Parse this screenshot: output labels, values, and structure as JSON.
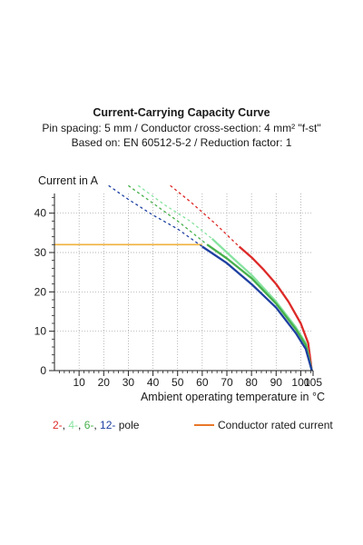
{
  "chart_data": {
    "type": "line",
    "title": "Current-Carrying Capacity Curve",
    "subtitle_lines": [
      "Pin spacing: 5 mm / Conductor cross-section: 4 mm² \"f-st\"",
      "Based on: EN 60512-5-2 / Reduction factor: 1"
    ],
    "ylabel": "Current in A",
    "xlabel": "Ambient operating temperature in °C",
    "xlim": [
      0,
      105
    ],
    "ylim": [
      0,
      45
    ],
    "x_ticks": [
      10,
      20,
      30,
      40,
      50,
      60,
      70,
      80,
      90,
      100,
      105
    ],
    "y_ticks": [
      0,
      10,
      20,
      30,
      40
    ],
    "grid": true,
    "series": [
      {
        "name": "2-",
        "color": "#dd2a28",
        "dashed": [
          [
            47,
            47
          ],
          [
            55,
            43
          ],
          [
            65,
            37.5
          ],
          [
            75,
            31.5
          ]
        ],
        "solid": [
          [
            75,
            31.5
          ],
          [
            80,
            28.8
          ],
          [
            85,
            25.6
          ],
          [
            90,
            22
          ],
          [
            95,
            17.5
          ],
          [
            100,
            12
          ],
          [
            103,
            7
          ],
          [
            104.5,
            0
          ]
        ]
      },
      {
        "name": "4-",
        "color": "#86e3a0",
        "dashed": [
          [
            34,
            47
          ],
          [
            45,
            42
          ],
          [
            55,
            38
          ],
          [
            64,
            33.5
          ]
        ],
        "solid": [
          [
            64,
            33.5
          ],
          [
            70,
            30
          ],
          [
            80,
            24.3
          ],
          [
            90,
            17.5
          ],
          [
            98,
            11
          ],
          [
            102,
            7
          ],
          [
            104.5,
            0
          ]
        ]
      },
      {
        "name": "6-",
        "color": "#47b04b",
        "dashed": [
          [
            30,
            47
          ],
          [
            40,
            42.5
          ],
          [
            50,
            38
          ],
          [
            62,
            32
          ]
        ],
        "solid": [
          [
            62,
            32
          ],
          [
            70,
            28.5
          ],
          [
            80,
            23.5
          ],
          [
            90,
            17
          ],
          [
            98,
            10.5
          ],
          [
            102,
            6.5
          ],
          [
            104.5,
            0
          ]
        ]
      },
      {
        "name": "12-",
        "color": "#1d3fa0",
        "dashed": [
          [
            22,
            47
          ],
          [
            30,
            43.5
          ],
          [
            40,
            39.5
          ],
          [
            50,
            36
          ],
          [
            60,
            31.5
          ]
        ],
        "solid": [
          [
            60,
            31.5
          ],
          [
            70,
            27.3
          ],
          [
            80,
            22
          ],
          [
            90,
            16
          ],
          [
            98,
            9.5
          ],
          [
            102,
            5.5
          ],
          [
            104.5,
            0
          ]
        ]
      }
    ],
    "rated_current": {
      "name": "Conductor rated current",
      "value": 32,
      "x_end": 60,
      "color": "#f0b23c"
    },
    "legend": {
      "poles_suffix": "pole",
      "rated_swatch_color": "#e8772a"
    }
  }
}
